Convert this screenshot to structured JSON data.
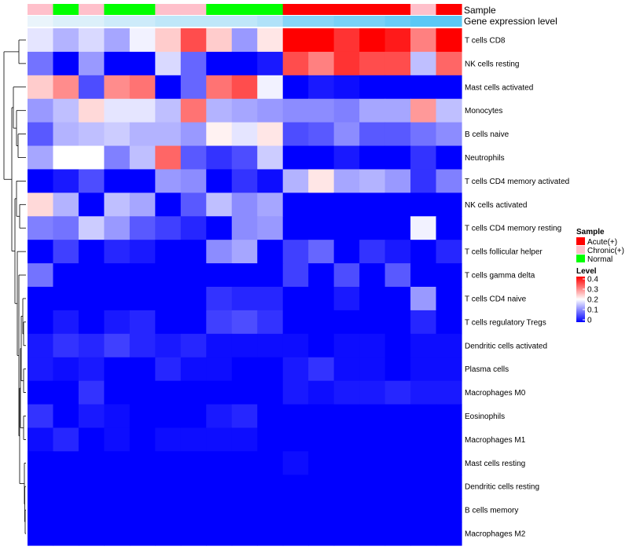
{
  "chart_data": {
    "type": "heatmap",
    "rows": [
      "T cells CD8",
      "NK cells resting",
      "Mast cells activated",
      "Monocytes",
      "B cells naive",
      "Neutrophils",
      "T cells CD4 memory activated",
      "NK cells activated",
      "T cells CD4 memory resting",
      "T cells follicular helper",
      "T cells gamma delta",
      "T cells CD4 naive",
      "T cells regulatory  Tregs",
      "Dendritic cells activated",
      "Plasma cells",
      "Macrophages M0",
      "Eosinophils",
      "Macrophages M1",
      "Mast cells resting",
      "Dendritic cells resting",
      "B cells memory",
      "Macrophages M2"
    ],
    "sample_groups": [
      "Chronic(+)",
      "Normal",
      "Chronic(+)",
      "Normal",
      "Normal",
      "Chronic(+)",
      "Chronic(+)",
      "Normal",
      "Normal",
      "Normal",
      "Acute(+)",
      "Acute(+)",
      "Acute(+)",
      "Acute(+)",
      "Acute(+)",
      "Chronic(+)",
      "Acute(+)"
    ],
    "column_expression": [
      0.16,
      0.17,
      0.17,
      0.18,
      0.18,
      0.19,
      0.19,
      0.19,
      0.19,
      0.2,
      0.23,
      0.23,
      0.24,
      0.24,
      0.25,
      0.26,
      0.26
    ],
    "values": [
      [
        0.18,
        0.14,
        0.17,
        0.13,
        0.19,
        0.24,
        0.34,
        0.24,
        0.12,
        0.22,
        0.4,
        0.4,
        0.36,
        0.4,
        0.38,
        0.3,
        0.4
      ],
      [
        0.09,
        0.0,
        0.12,
        0.0,
        0.0,
        0.17,
        0.08,
        0.0,
        0.0,
        0.02,
        0.34,
        0.3,
        0.36,
        0.34,
        0.34,
        0.15,
        0.32
      ],
      [
        0.24,
        0.29,
        0.06,
        0.29,
        0.31,
        0.0,
        0.08,
        0.31,
        0.34,
        0.19,
        0.0,
        0.02,
        0.01,
        0.0,
        0.0,
        0.0,
        0.0
      ],
      [
        0.12,
        0.15,
        0.23,
        0.18,
        0.18,
        0.15,
        0.31,
        0.14,
        0.13,
        0.12,
        0.11,
        0.11,
        0.1,
        0.13,
        0.13,
        0.28,
        0.15
      ],
      [
        0.07,
        0.14,
        0.15,
        0.16,
        0.14,
        0.14,
        0.12,
        0.21,
        0.18,
        0.22,
        0.06,
        0.07,
        0.11,
        0.07,
        0.07,
        0.09,
        0.11
      ],
      [
        0.13,
        0.2,
        0.2,
        0.1,
        0.15,
        0.32,
        0.07,
        0.04,
        0.06,
        0.16,
        0.0,
        0.0,
        0.02,
        0.0,
        0.0,
        0.04,
        0.0
      ],
      [
        0.0,
        0.02,
        0.06,
        0.0,
        0.0,
        0.12,
        0.11,
        0.0,
        0.04,
        0.01,
        0.14,
        0.22,
        0.13,
        0.14,
        0.12,
        0.04,
        0.1
      ],
      [
        0.23,
        0.14,
        0.0,
        0.15,
        0.13,
        0.0,
        0.07,
        0.15,
        0.11,
        0.13,
        0.0,
        0.0,
        0.0,
        0.0,
        0.0,
        0.0,
        0.0
      ],
      [
        0.1,
        0.09,
        0.16,
        0.12,
        0.07,
        0.05,
        0.03,
        0.0,
        0.11,
        0.12,
        0.0,
        0.0,
        0.0,
        0.0,
        0.0,
        0.19,
        0.0
      ],
      [
        0.0,
        0.05,
        0.0,
        0.03,
        0.02,
        0.0,
        0.0,
        0.11,
        0.13,
        0.0,
        0.05,
        0.08,
        0.0,
        0.04,
        0.02,
        0.0,
        0.03
      ],
      [
        0.09,
        0.0,
        0.0,
        0.0,
        0.0,
        0.0,
        0.0,
        0.0,
        0.0,
        0.0,
        0.05,
        0.0,
        0.06,
        0.0,
        0.07,
        0.0,
        0.0
      ],
      [
        0.0,
        0.0,
        0.0,
        0.0,
        0.0,
        0.0,
        0.0,
        0.04,
        0.03,
        0.03,
        0.0,
        0.0,
        0.02,
        0.0,
        0.0,
        0.12,
        0.0
      ],
      [
        0.0,
        0.02,
        0.0,
        0.02,
        0.03,
        0.0,
        0.0,
        0.05,
        0.06,
        0.04,
        0.0,
        0.0,
        0.0,
        0.0,
        0.0,
        0.03,
        0.0
      ],
      [
        0.02,
        0.04,
        0.03,
        0.05,
        0.03,
        0.02,
        0.03,
        0.01,
        0.01,
        0.01,
        0.01,
        0.0,
        0.01,
        0.01,
        0.0,
        0.01,
        0.01
      ],
      [
        0.02,
        0.01,
        0.02,
        0.0,
        0.0,
        0.03,
        0.01,
        0.01,
        0.0,
        0.0,
        0.02,
        0.04,
        0.01,
        0.01,
        0.0,
        0.01,
        0.01
      ],
      [
        0.0,
        0.0,
        0.04,
        0.0,
        0.0,
        0.0,
        0.0,
        0.0,
        0.0,
        0.0,
        0.02,
        0.01,
        0.02,
        0.02,
        0.03,
        0.02,
        0.02
      ],
      [
        0.04,
        0.0,
        0.02,
        0.01,
        0.0,
        0.0,
        0.0,
        0.02,
        0.03,
        0.0,
        0.0,
        0.0,
        0.0,
        0.0,
        0.0,
        0.0,
        0.0
      ],
      [
        0.01,
        0.03,
        0.0,
        0.01,
        0.0,
        0.01,
        0.01,
        0.01,
        0.01,
        0.0,
        0.0,
        0.0,
        0.0,
        0.0,
        0.0,
        0.0,
        0.0
      ],
      [
        0.0,
        0.0,
        0.0,
        0.0,
        0.0,
        0.0,
        0.0,
        0.0,
        0.0,
        0.0,
        0.01,
        0.0,
        0.0,
        0.0,
        0.0,
        0.0,
        0.0
      ],
      [
        0.0,
        0.0,
        0.0,
        0.0,
        0.0,
        0.0,
        0.0,
        0.0,
        0.0,
        0.0,
        0.0,
        0.0,
        0.0,
        0.0,
        0.0,
        0.0,
        0.0
      ],
      [
        0.0,
        0.0,
        0.0,
        0.0,
        0.0,
        0.0,
        0.0,
        0.0,
        0.0,
        0.0,
        0.0,
        0.0,
        0.0,
        0.0,
        0.0,
        0.0,
        0.0
      ],
      [
        0.0,
        0.0,
        0.0,
        0.0,
        0.0,
        0.0,
        0.0,
        0.0,
        0.0,
        0.0,
        0.0,
        0.0,
        0.0,
        0.0,
        0.0,
        0.0,
        0.0
      ]
    ],
    "annotation_labels": [
      "Sample",
      "Gene expression level"
    ],
    "sample_legend": {
      "title": "Sample",
      "items": [
        {
          "label": "Acute(+)",
          "color": "#ff0000"
        },
        {
          "label": "Chronic(+)",
          "color": "#ffc0cb"
        },
        {
          "label": "Normal",
          "color": "#00ff00"
        }
      ]
    },
    "level_legend": {
      "title": "Level",
      "ticks": [
        "0.4",
        "0.3",
        "0.2",
        "0.1",
        "0"
      ],
      "range": [
        0,
        0.4
      ]
    },
    "colors": {
      "low": "#0000ff",
      "mid": "#ffffff",
      "high": "#ff0000",
      "expr_low": "#eaf4fb",
      "expr_high": "#5bc8f5"
    },
    "dendrogram": "row"
  }
}
